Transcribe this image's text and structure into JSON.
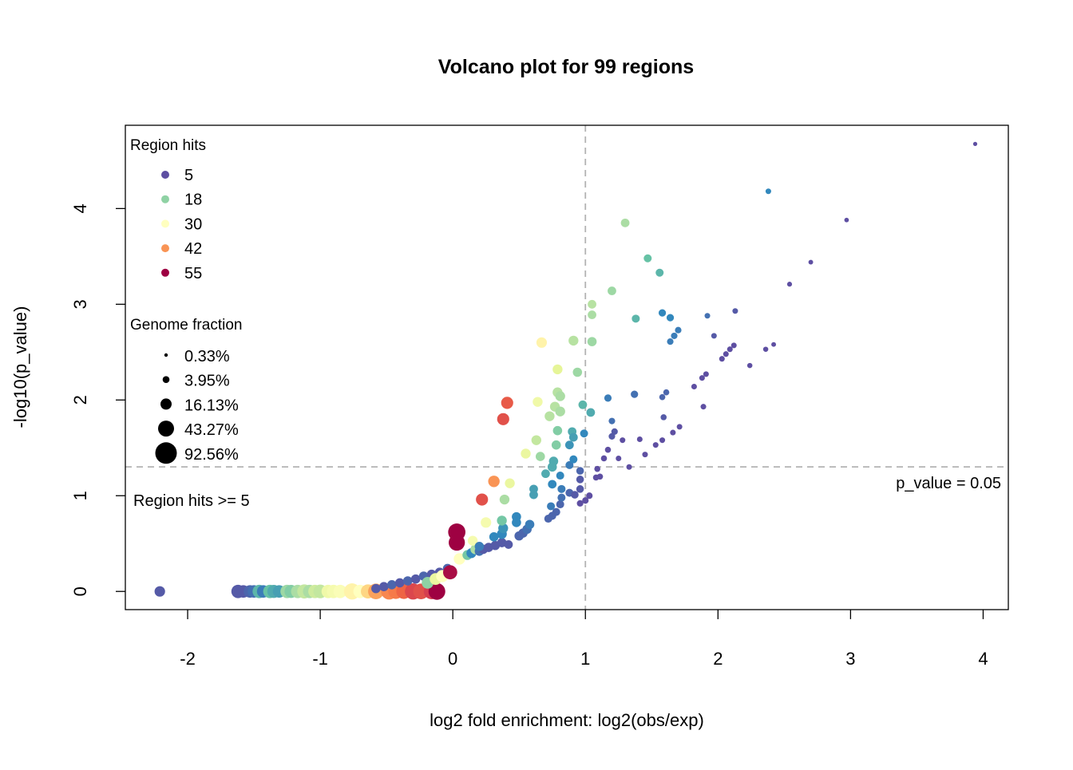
{
  "chart_data": {
    "type": "scatter",
    "title": "Volcano plot for 99 regions",
    "xlabel": "log2 fold enrichment: log2(obs/exp)",
    "ylabel": "-log10(p_value)",
    "xlim": [
      -2.47,
      4.19
    ],
    "ylim": [
      -0.19,
      4.87
    ],
    "x_ticks": [
      -2,
      -1,
      0,
      1,
      2,
      3,
      4
    ],
    "x_tick_labels": [
      "-2",
      "-1",
      "0",
      "1",
      "2",
      "3",
      "4"
    ],
    "y_ticks": [
      0,
      1,
      2,
      3,
      4
    ],
    "y_tick_labels": [
      "0",
      "1",
      "2",
      "3",
      "4"
    ],
    "grid": false,
    "reference_lines": {
      "vertical_x": 1,
      "horizontal_y": 1.301,
      "horizontal_label": "p_value = 0.05"
    },
    "annotation": "Region hits >= 5",
    "legend_color": {
      "title": "Region hits",
      "placement": "top-left",
      "entries": [
        {
          "label": "5",
          "hits": 5
        },
        {
          "label": "18",
          "hits": 18
        },
        {
          "label": "30",
          "hits": 30
        },
        {
          "label": "42",
          "hits": 42
        },
        {
          "label": "55",
          "hits": 55
        }
      ]
    },
    "legend_size": {
      "title": "Genome fraction",
      "placement": "top-left",
      "entries": [
        {
          "label": "0.33%",
          "fraction": 0.33
        },
        {
          "label": "3.95%",
          "fraction": 3.95
        },
        {
          "label": "16.13%",
          "fraction": 16.13
        },
        {
          "label": "43.27%",
          "fraction": 43.27
        },
        {
          "label": "92.56%",
          "fraction": 92.56
        }
      ]
    },
    "palette": [
      "#5E4FA2",
      "#3288BD",
      "#66C2A5",
      "#ABDDA4",
      "#E6F598",
      "#FFFFBF",
      "#FEE08B",
      "#FDAE61",
      "#F46D43",
      "#D53E4F",
      "#9E0142"
    ],
    "point_fields": [
      "log2_fold",
      "neg_log10_p",
      "region_hits",
      "genome_fraction_pct"
    ],
    "points": [
      [
        -1.62,
        0,
        6,
        30
      ],
      [
        -1.58,
        0,
        6,
        25
      ],
      [
        -1.53,
        0,
        7,
        25
      ],
      [
        -1.5,
        0,
        8,
        25
      ],
      [
        -1.46,
        0,
        14,
        30
      ],
      [
        -1.43,
        0,
        9,
        25
      ],
      [
        -1.38,
        0,
        15,
        30
      ],
      [
        -1.35,
        0,
        13,
        28
      ],
      [
        -1.31,
        0,
        12,
        25
      ],
      [
        -1.25,
        0,
        19,
        30
      ],
      [
        -1.22,
        0,
        17,
        28
      ],
      [
        -1.17,
        0,
        20,
        30
      ],
      [
        -1.12,
        0,
        22,
        35
      ],
      [
        -1.08,
        0,
        20,
        30
      ],
      [
        -1.04,
        0,
        23,
        30
      ],
      [
        -1.0,
        0,
        22,
        32
      ],
      [
        -0.94,
        0,
        27,
        30
      ],
      [
        -0.9,
        0,
        28,
        30
      ],
      [
        -0.85,
        0,
        29,
        30
      ],
      [
        -0.76,
        0,
        32,
        50
      ],
      [
        -0.7,
        0,
        30,
        30
      ],
      [
        -0.64,
        0,
        36,
        35
      ],
      [
        -0.58,
        0,
        41,
        45
      ],
      [
        -0.48,
        0,
        43,
        50
      ],
      [
        -0.43,
        0,
        44,
        40
      ],
      [
        -0.37,
        0,
        46,
        40
      ],
      [
        -0.3,
        0,
        49,
        50
      ],
      [
        -0.24,
        0,
        48,
        45
      ],
      [
        -0.16,
        0,
        50,
        45
      ],
      [
        -0.12,
        0,
        55,
        55
      ],
      [
        -2.21,
        0,
        6,
        14
      ],
      [
        -0.58,
        0.03,
        6,
        10
      ],
      [
        -0.52,
        0.05,
        6,
        10
      ],
      [
        -0.46,
        0.07,
        7,
        10
      ],
      [
        -0.4,
        0.09,
        6,
        10
      ],
      [
        -0.34,
        0.11,
        7,
        10
      ],
      [
        -0.28,
        0.13,
        6,
        10
      ],
      [
        -0.22,
        0.16,
        7,
        10
      ],
      [
        -0.16,
        0.18,
        6,
        10
      ],
      [
        -0.1,
        0.2,
        6,
        10
      ],
      [
        -0.04,
        0.24,
        7,
        10
      ],
      [
        -0.19,
        0.09,
        18,
        20
      ],
      [
        -0.13,
        0.13,
        26,
        20
      ],
      [
        -0.08,
        0.16,
        30,
        22
      ],
      [
        -0.02,
        0.2,
        54,
        35
      ],
      [
        0.05,
        0.34,
        30,
        18
      ],
      [
        0.11,
        0.38,
        16,
        12
      ],
      [
        0.14,
        0.4,
        10,
        12
      ],
      [
        0.17,
        0.44,
        20,
        12
      ],
      [
        0.2,
        0.42,
        8,
        10
      ],
      [
        0.23,
        0.44,
        6,
        10
      ],
      [
        0.27,
        0.46,
        6,
        10
      ],
      [
        0.32,
        0.48,
        6,
        10
      ],
      [
        0.37,
        0.51,
        6,
        10
      ],
      [
        0.42,
        0.49,
        6,
        8
      ],
      [
        0.15,
        0.53,
        28,
        12
      ],
      [
        0.2,
        0.47,
        9,
        10
      ],
      [
        0.31,
        0.57,
        10,
        10
      ],
      [
        0.37,
        0.6,
        10,
        12
      ],
      [
        0.38,
        0.66,
        11,
        12
      ],
      [
        0.5,
        0.58,
        7,
        10
      ],
      [
        0.53,
        0.61,
        7,
        10
      ],
      [
        0.56,
        0.65,
        8,
        10
      ],
      [
        0.58,
        0.7,
        9,
        10
      ],
      [
        0.48,
        0.78,
        10,
        10
      ],
      [
        0.48,
        0.72,
        10,
        10
      ],
      [
        0.37,
        0.74,
        16,
        12
      ],
      [
        0.25,
        0.72,
        28,
        14
      ],
      [
        0.03,
        0.62,
        55,
        60
      ],
      [
        0.03,
        0.51,
        55,
        50
      ],
      [
        0.72,
        0.76,
        7,
        6
      ],
      [
        0.75,
        0.79,
        7,
        6
      ],
      [
        0.78,
        0.83,
        7,
        6
      ],
      [
        0.74,
        0.89,
        9,
        6
      ],
      [
        0.81,
        0.91,
        7,
        6
      ],
      [
        0.82,
        0.98,
        8,
        6
      ],
      [
        0.82,
        1.07,
        9,
        6
      ],
      [
        0.75,
        1.12,
        10,
        8
      ],
      [
        0.88,
        1.03,
        7,
        6
      ],
      [
        0.92,
        1.01,
        6,
        5
      ],
      [
        0.61,
        1.07,
        12,
        8
      ],
      [
        0.61,
        1.01,
        12,
        8
      ],
      [
        0.39,
        0.96,
        20,
        12
      ],
      [
        0.22,
        0.96,
        48,
        22
      ],
      [
        0.43,
        1.13,
        26,
        12
      ],
      [
        0.31,
        1.15,
        42,
        18
      ],
      [
        0.96,
        1.17,
        6,
        5
      ],
      [
        0.96,
        1.07,
        6,
        5
      ],
      [
        0.96,
        1.26,
        7,
        5
      ],
      [
        0.81,
        1.21,
        10,
        6
      ],
      [
        0.7,
        1.23,
        13,
        8
      ],
      [
        0.76,
        1.36,
        13,
        10
      ],
      [
        0.75,
        1.3,
        13,
        10
      ],
      [
        0.88,
        1.32,
        9,
        6
      ],
      [
        0.91,
        1.38,
        10,
        6
      ],
      [
        0.66,
        1.41,
        19,
        10
      ],
      [
        0.55,
        1.44,
        26,
        12
      ],
      [
        0.9,
        1.67,
        13,
        8
      ],
      [
        0.91,
        1.61,
        12,
        8
      ],
      [
        0.88,
        1.53,
        11,
        8
      ],
      [
        0.99,
        1.65,
        10,
        6
      ],
      [
        0.63,
        1.58,
        22,
        12
      ],
      [
        0.78,
        1.53,
        17,
        10
      ],
      [
        0.79,
        1.68,
        17,
        10
      ],
      [
        0.73,
        1.83,
        21,
        12
      ],
      [
        0.77,
        1.93,
        21,
        12
      ],
      [
        0.81,
        1.88,
        20,
        12
      ],
      [
        0.98,
        1.95,
        14,
        8
      ],
      [
        1.04,
        1.87,
        13,
        8
      ],
      [
        0.64,
        1.98,
        27,
        12
      ],
      [
        0.41,
        1.97,
        47,
        22
      ],
      [
        0.38,
        1.8,
        48,
        22
      ],
      [
        0.79,
        2.08,
        21,
        12
      ],
      [
        0.81,
        2.04,
        20,
        12
      ],
      [
        0.79,
        2.32,
        25,
        12
      ],
      [
        0.94,
        2.29,
        19,
        10
      ],
      [
        0.67,
        2.6,
        32,
        14
      ],
      [
        0.91,
        2.62,
        21,
        12
      ],
      [
        1.05,
        2.61,
        19,
        10
      ],
      [
        3.94,
        4.675,
        5,
        0.33
      ],
      [
        2.38,
        4.18,
        10,
        2
      ],
      [
        2.97,
        3.88,
        5,
        0.8
      ],
      [
        2.7,
        3.44,
        5,
        1
      ],
      [
        2.54,
        3.21,
        5,
        1.2
      ],
      [
        2.13,
        2.93,
        6,
        2
      ],
      [
        1.92,
        2.88,
        8,
        2
      ],
      [
        1.97,
        2.67,
        6,
        2
      ],
      [
        2.42,
        2.58,
        5,
        1
      ],
      [
        2.36,
        2.53,
        5,
        1.5
      ],
      [
        2.12,
        2.57,
        5,
        2
      ],
      [
        2.09,
        2.53,
        5,
        2
      ],
      [
        2.06,
        2.48,
        5,
        2
      ],
      [
        2.03,
        2.43,
        5,
        2
      ],
      [
        2.24,
        2.36,
        5,
        1.5
      ],
      [
        1.91,
        2.27,
        5,
        2
      ],
      [
        1.88,
        2.23,
        5,
        2
      ],
      [
        1.82,
        2.14,
        5,
        2
      ],
      [
        1.89,
        1.93,
        5,
        2
      ],
      [
        1.61,
        2.08,
        7,
        2.5
      ],
      [
        1.58,
        2.03,
        7,
        2.5
      ],
      [
        1.59,
        1.82,
        6,
        2.5
      ],
      [
        1.71,
        1.72,
        5,
        2
      ],
      [
        1.66,
        1.66,
        5,
        2
      ],
      [
        1.58,
        1.58,
        5,
        2
      ],
      [
        1.53,
        1.53,
        5,
        2
      ],
      [
        1.41,
        1.59,
        5,
        2
      ],
      [
        1.45,
        1.43,
        5,
        2
      ],
      [
        1.33,
        1.3,
        5,
        2
      ],
      [
        1.25,
        1.39,
        5,
        2
      ],
      [
        1.28,
        1.58,
        5,
        2
      ],
      [
        1.22,
        1.67,
        6,
        3
      ],
      [
        1.2,
        1.62,
        6,
        3
      ],
      [
        1.2,
        1.78,
        8,
        3
      ],
      [
        1.17,
        2.02,
        9,
        4
      ],
      [
        1.37,
        2.06,
        8,
        4
      ],
      [
        1.17,
        1.48,
        5,
        2.5
      ],
      [
        1.14,
        1.39,
        5,
        2.5
      ],
      [
        1.09,
        1.28,
        5,
        2.5
      ],
      [
        1.11,
        1.2,
        5,
        2.5
      ],
      [
        1.08,
        1.19,
        5,
        2.5
      ],
      [
        1.03,
        1.0,
        5,
        3
      ],
      [
        1.0,
        0.95,
        5,
        3
      ],
      [
        0.96,
        0.92,
        5,
        3
      ],
      [
        1.3,
        3.85,
        20,
        8
      ],
      [
        1.47,
        3.48,
        15,
        6
      ],
      [
        1.56,
        3.33,
        14,
        6
      ],
      [
        1.2,
        3.14,
        19,
        8
      ],
      [
        1.05,
        3.0,
        21,
        8
      ],
      [
        1.05,
        2.89,
        20,
        8
      ],
      [
        1.58,
        2.91,
        10,
        4
      ],
      [
        1.64,
        2.86,
        10,
        4
      ],
      [
        1.38,
        2.85,
        14,
        6
      ],
      [
        1.7,
        2.73,
        9,
        3
      ],
      [
        1.67,
        2.67,
        9,
        3
      ],
      [
        1.64,
        2.61,
        9,
        3
      ]
    ]
  }
}
